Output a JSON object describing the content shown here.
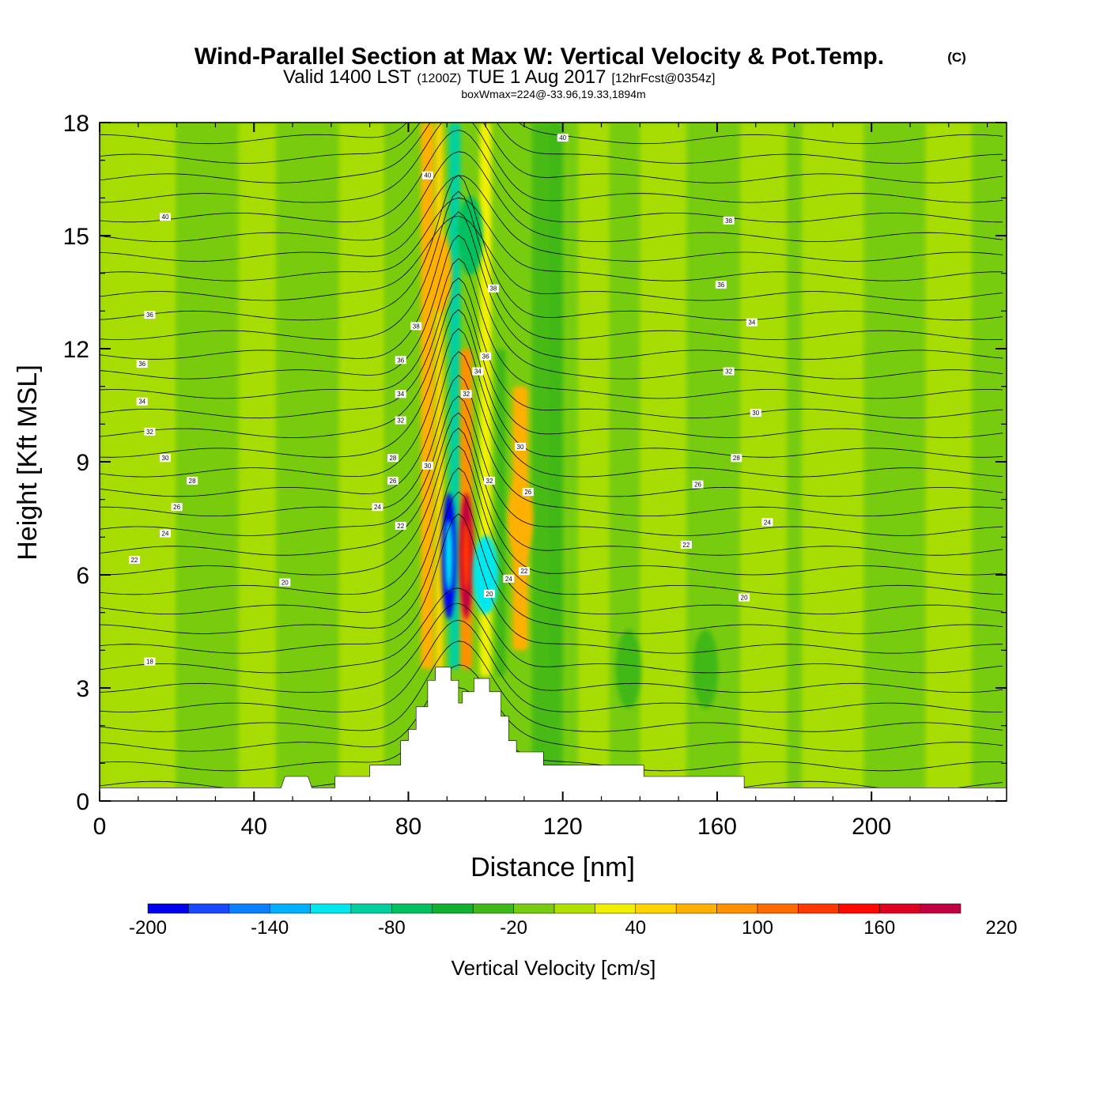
{
  "title": {
    "main": "Wind-Parallel Section at Max W: Vertical Velocity & Pot.Temp.",
    "copyright": "(C)",
    "valid_prefix": "Valid 1400 LST",
    "valid_z": "(1200Z)",
    "valid_date": "TUE 1 Aug 2017",
    "forecast": "[12hrFcst@0354z]",
    "boxwmax": "boxWmax=224@-33.96,19.33,1894m"
  },
  "chart_data": {
    "type": "cross-section (filled contour + line contour)",
    "xlabel": "Distance [nm]",
    "ylabel": "Height [Kft MSL]",
    "xlim": [
      0,
      235
    ],
    "ylim": [
      0,
      18
    ],
    "x_ticks": [
      0,
      40,
      80,
      120,
      160,
      200
    ],
    "x_tick_labels": [
      "0",
      "40",
      "80",
      "120",
      "160",
      "200"
    ],
    "y_ticks": [
      0,
      3,
      6,
      9,
      12,
      15,
      18
    ],
    "y_tick_labels": [
      "0",
      "3",
      "6",
      "9",
      "12",
      "15",
      "18"
    ],
    "colorbar": {
      "label": "Vertical Velocity [cm/s]",
      "levels": [
        -200,
        -180,
        -160,
        -140,
        -120,
        -100,
        -80,
        -60,
        -40,
        -20,
        0,
        20,
        40,
        60,
        80,
        100,
        120,
        140,
        160,
        180,
        200,
        220
      ],
      "tick_labels": [
        "-200",
        "-140",
        "-80",
        "-20",
        "40",
        "100",
        "160",
        "220"
      ],
      "colors": [
        "#0000f0",
        "#1a48ff",
        "#0a80ff",
        "#00b0ff",
        "#00e8ee",
        "#00d0a0",
        "#00c060",
        "#10b030",
        "#40b818",
        "#78cc10",
        "#b0e000",
        "#f0f000",
        "#ffd400",
        "#ffb000",
        "#ff9000",
        "#ff6a00",
        "#ff3800",
        "#ff0800",
        "#e00020",
        "#c00040"
      ]
    },
    "terrain_kft": [
      {
        "x": 0,
        "h": 0.35
      },
      {
        "x": 47,
        "h": 0.35
      },
      {
        "x": 48,
        "h": 0.65
      },
      {
        "x": 54,
        "h": 0.65
      },
      {
        "x": 55,
        "h": 0.35
      },
      {
        "x": 61,
        "h": 0.35
      },
      {
        "x": 61,
        "h": 0.65
      },
      {
        "x": 70,
        "h": 0.65
      },
      {
        "x": 70,
        "h": 0.95
      },
      {
        "x": 78,
        "h": 0.95
      },
      {
        "x": 78,
        "h": 1.6
      },
      {
        "x": 80,
        "h": 1.6
      },
      {
        "x": 80,
        "h": 1.9
      },
      {
        "x": 82,
        "h": 1.9
      },
      {
        "x": 82,
        "h": 2.5
      },
      {
        "x": 85,
        "h": 2.5
      },
      {
        "x": 85,
        "h": 3.2
      },
      {
        "x": 87,
        "h": 3.2
      },
      {
        "x": 87,
        "h": 3.55
      },
      {
        "x": 91,
        "h": 3.55
      },
      {
        "x": 91,
        "h": 3.2
      },
      {
        "x": 93,
        "h": 3.2
      },
      {
        "x": 93,
        "h": 2.6
      },
      {
        "x": 94,
        "h": 2.6
      },
      {
        "x": 94,
        "h": 2.9
      },
      {
        "x": 97,
        "h": 2.9
      },
      {
        "x": 97,
        "h": 3.25
      },
      {
        "x": 101,
        "h": 3.25
      },
      {
        "x": 101,
        "h": 2.9
      },
      {
        "x": 104,
        "h": 2.9
      },
      {
        "x": 104,
        "h": 2.25
      },
      {
        "x": 106,
        "h": 2.25
      },
      {
        "x": 106,
        "h": 1.6
      },
      {
        "x": 108,
        "h": 1.6
      },
      {
        "x": 108,
        "h": 1.3
      },
      {
        "x": 115,
        "h": 1.3
      },
      {
        "x": 115,
        "h": 0.95
      },
      {
        "x": 141,
        "h": 0.95
      },
      {
        "x": 141,
        "h": 0.65
      },
      {
        "x": 167,
        "h": 0.65
      },
      {
        "x": 167,
        "h": 0.35
      },
      {
        "x": 235,
        "h": 0.35
      }
    ],
    "w_features": [
      {
        "x": 90.5,
        "z": 6.5,
        "w": -200
      },
      {
        "x": 95,
        "z": 6.5,
        "w": 200
      },
      {
        "x": 100,
        "z": 6,
        "w": -120
      },
      {
        "x": 96,
        "z": 15,
        "w": -80
      },
      {
        "x": 109,
        "z": 7.5,
        "w": 70
      },
      {
        "x": 88,
        "z": 14,
        "w": 70
      },
      {
        "x": 157,
        "z": 3.5,
        "w": -30
      },
      {
        "x": 137,
        "z": 3.5,
        "w": -30
      }
    ],
    "theta_contour_labels": [
      {
        "text": "40",
        "x": 17,
        "z": 15.5
      },
      {
        "text": "36",
        "x": 13,
        "z": 12.9
      },
      {
        "text": "36",
        "x": 11,
        "z": 11.6
      },
      {
        "text": "34",
        "x": 11,
        "z": 10.6
      },
      {
        "text": "32",
        "x": 13,
        "z": 9.8
      },
      {
        "text": "30",
        "x": 17,
        "z": 9.1
      },
      {
        "text": "28",
        "x": 24,
        "z": 8.5
      },
      {
        "text": "26",
        "x": 20,
        "z": 7.8
      },
      {
        "text": "24",
        "x": 17,
        "z": 7.1
      },
      {
        "text": "22",
        "x": 9,
        "z": 6.4
      },
      {
        "text": "20",
        "x": 48,
        "z": 5.8
      },
      {
        "text": "18",
        "x": 13,
        "z": 3.7
      },
      {
        "text": "40",
        "x": 85,
        "z": 16.6
      },
      {
        "text": "40",
        "x": 120,
        "z": 17.6
      },
      {
        "text": "38",
        "x": 82,
        "z": 12.6
      },
      {
        "text": "36",
        "x": 78,
        "z": 11.7
      },
      {
        "text": "34",
        "x": 78,
        "z": 10.8
      },
      {
        "text": "32",
        "x": 78,
        "z": 10.1
      },
      {
        "text": "30",
        "x": 85,
        "z": 8.9
      },
      {
        "text": "28",
        "x": 76,
        "z": 9.1
      },
      {
        "text": "26",
        "x": 76,
        "z": 8.5
      },
      {
        "text": "24",
        "x": 72,
        "z": 7.8
      },
      {
        "text": "22",
        "x": 78,
        "z": 7.3
      },
      {
        "text": "38",
        "x": 102,
        "z": 13.6
      },
      {
        "text": "36",
        "x": 100,
        "z": 11.8
      },
      {
        "text": "34",
        "x": 98,
        "z": 11.4
      },
      {
        "text": "32",
        "x": 95,
        "z": 10.8
      },
      {
        "text": "30",
        "x": 109,
        "z": 9.4
      },
      {
        "text": "32",
        "x": 101,
        "z": 8.5
      },
      {
        "text": "26",
        "x": 111,
        "z": 8.2
      },
      {
        "text": "24",
        "x": 106,
        "z": 5.9
      },
      {
        "text": "22",
        "x": 110,
        "z": 6.1
      },
      {
        "text": "20",
        "x": 101,
        "z": 5.5
      },
      {
        "text": "38",
        "x": 163,
        "z": 15.4
      },
      {
        "text": "36",
        "x": 161,
        "z": 13.7
      },
      {
        "text": "34",
        "x": 169,
        "z": 12.7
      },
      {
        "text": "32",
        "x": 163,
        "z": 11.4
      },
      {
        "text": "30",
        "x": 170,
        "z": 10.3
      },
      {
        "text": "28",
        "x": 165,
        "z": 9.1
      },
      {
        "text": "26",
        "x": 155,
        "z": 8.4
      },
      {
        "text": "24",
        "x": 173,
        "z": 7.4
      },
      {
        "text": "22",
        "x": 152,
        "z": 6.8
      },
      {
        "text": "20",
        "x": 167,
        "z": 5.4
      }
    ]
  }
}
